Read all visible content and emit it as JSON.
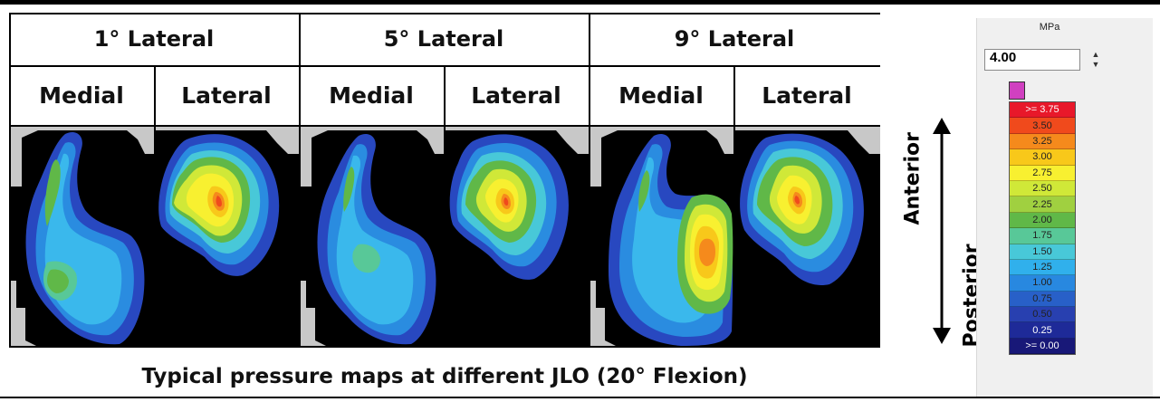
{
  "conditions": [
    {
      "title": "1° Lateral",
      "medial_label": "Medial",
      "lateral_label": "Lateral"
    },
    {
      "title": "5° Lateral",
      "medial_label": "Medial",
      "lateral_label": "Lateral"
    },
    {
      "title": "9° Lateral",
      "medial_label": "Medial",
      "lateral_label": "Lateral"
    }
  ],
  "caption": "Typical pressure maps at different JLO (20° Flexion)",
  "orientation": {
    "top_label": "Anterior",
    "bottom_label": "Posterior"
  },
  "legend": {
    "unit": "MPa",
    "max_value": "4.00",
    "bins": [
      {
        "label": ">= 3.75",
        "color": "#e8182a",
        "text": "#ffffff"
      },
      {
        "label": "3.50",
        "color": "#f04a1c",
        "text": "#222222"
      },
      {
        "label": "3.25",
        "color": "#f58a1c",
        "text": "#222222"
      },
      {
        "label": "3.00",
        "color": "#f8c81a",
        "text": "#222222"
      },
      {
        "label": "2.75",
        "color": "#f8f030",
        "text": "#222222"
      },
      {
        "label": "2.50",
        "color": "#d0e838",
        "text": "#222222"
      },
      {
        "label": "2.25",
        "color": "#a0d040",
        "text": "#222222"
      },
      {
        "label": "2.00",
        "color": "#60b848",
        "text": "#222222"
      },
      {
        "label": "1.75",
        "color": "#58c898",
        "text": "#222222"
      },
      {
        "label": "1.50",
        "color": "#48c8d8",
        "text": "#222222"
      },
      {
        "label": "1.25",
        "color": "#30b0ec",
        "text": "#222222"
      },
      {
        "label": "1.00",
        "color": "#2888e0",
        "text": "#222222"
      },
      {
        "label": "0.75",
        "color": "#2860c8",
        "text": "#222222"
      },
      {
        "label": "0.50",
        "color": "#2840b0",
        "text": "#222222"
      },
      {
        "label": "0.25",
        "color": "#1e2a98",
        "text": "#ffffff"
      },
      {
        "label": ">= 0.00",
        "color": "#181878",
        "text": "#ffffff"
      }
    ]
  }
}
